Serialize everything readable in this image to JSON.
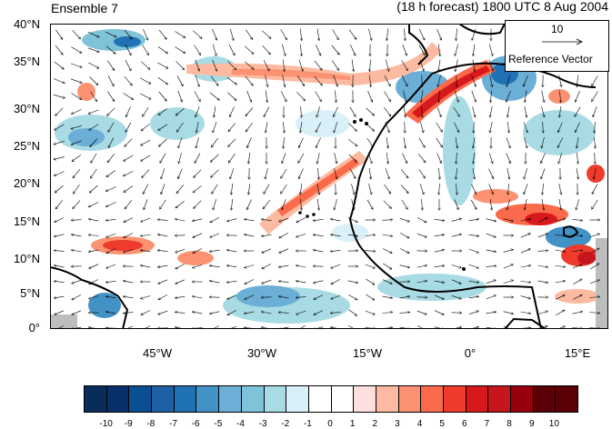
{
  "header": {
    "left_title": "Ensemble 7",
    "right_title": "(18 h forecast) 1800 UTC 8 Aug 2004"
  },
  "axes": {
    "lat_labels": [
      "40°N",
      "35°N",
      "30°N",
      "25°N",
      "20°N",
      "15°N",
      "10°N",
      "5°N",
      "0°"
    ],
    "lon_labels": [
      "45°W",
      "30°W",
      "15°W",
      "0°",
      "15°E"
    ]
  },
  "reference_vector": {
    "magnitude": "10",
    "label": "Reference Vector"
  },
  "colorbar": {
    "labels": [
      "-10",
      "-9",
      "-8",
      "-7",
      "-6",
      "-5",
      "-4",
      "-3",
      "-2",
      "-1",
      "0",
      "1",
      "2",
      "3",
      "4",
      "5",
      "6",
      "7",
      "8",
      "9",
      "10"
    ],
    "colors": [
      "#0a2c5a",
      "#08306b",
      "#0b4f93",
      "#1f5fa5",
      "#2171b5",
      "#4292c6",
      "#6baed6",
      "#7fc3d8",
      "#a8dbe4",
      "#d9f0f8",
      "#ffffff",
      "#ffffff",
      "#fde0dd",
      "#fcbba1",
      "#fc9272",
      "#fb6a4a",
      "#ef3b2c",
      "#d7191c",
      "#c4161c",
      "#99000d",
      "#5c0008"
    ]
  }
}
